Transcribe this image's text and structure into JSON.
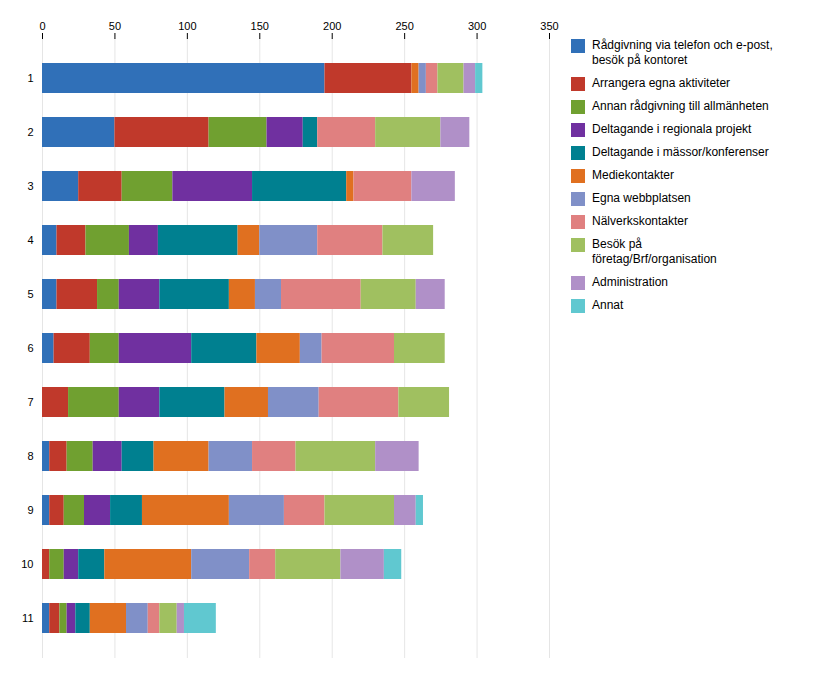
{
  "chart_data": {
    "type": "bar",
    "orientation": "horizontal",
    "stacked": true,
    "categories": [
      "1",
      "2",
      "3",
      "4",
      "5",
      "6",
      "7",
      "8",
      "9",
      "10",
      "11"
    ],
    "series": [
      {
        "name": "Rådgivning via telefon och e-post,\nbesök på kontoret",
        "color": "#3070B8",
        "values": [
          195,
          50,
          25,
          10,
          10,
          8,
          0,
          5,
          5,
          0,
          5
        ]
      },
      {
        "name": "Arrangera egna aktiviteter",
        "color": "#C0392B",
        "values": [
          60,
          65,
          30,
          20,
          28,
          25,
          18,
          12,
          10,
          5,
          7
        ]
      },
      {
        "name": "Annan rådgivning till allmänheten",
        "color": "#70A030",
        "values": [
          0,
          40,
          35,
          30,
          15,
          20,
          35,
          18,
          14,
          10,
          5
        ]
      },
      {
        "name": "Deltagande i regionala projekt",
        "color": "#7030A0",
        "values": [
          0,
          25,
          55,
          20,
          28,
          50,
          28,
          20,
          18,
          10,
          6
        ]
      },
      {
        "name": "Deltagande i mässor/konferenser",
        "color": "#008090",
        "values": [
          0,
          10,
          65,
          55,
          48,
          45,
          45,
          22,
          22,
          18,
          10
        ]
      },
      {
        "name": "Mediekontakter",
        "color": "#E07020",
        "values": [
          5,
          0,
          5,
          15,
          18,
          30,
          30,
          38,
          60,
          60,
          25
        ]
      },
      {
        "name": "Egna webbplatsen",
        "color": "#8090C8",
        "values": [
          5,
          0,
          0,
          40,
          18,
          15,
          35,
          30,
          38,
          40,
          15
        ]
      },
      {
        "name": "Nälverkskontakter",
        "color": "#E08080",
        "values": [
          8,
          40,
          40,
          45,
          55,
          50,
          55,
          30,
          28,
          18,
          8
        ]
      },
      {
        "name": "Besök på\nföretag/Brf/organisation",
        "color": "#A0C060",
        "values": [
          18,
          45,
          0,
          35,
          38,
          35,
          35,
          55,
          48,
          45,
          12
        ]
      },
      {
        "name": "Administration",
        "color": "#B090C8",
        "values": [
          8,
          20,
          30,
          0,
          20,
          0,
          0,
          30,
          15,
          30,
          5
        ]
      },
      {
        "name": "Annat",
        "color": "#60C8D0",
        "values": [
          5,
          0,
          0,
          0,
          0,
          0,
          0,
          0,
          5,
          12,
          22
        ]
      }
    ],
    "xlim": [
      0,
      350
    ],
    "xticks": [
      0,
      50,
      100,
      150,
      200,
      250,
      300,
      350
    ],
    "grid": true,
    "legend": "right"
  }
}
